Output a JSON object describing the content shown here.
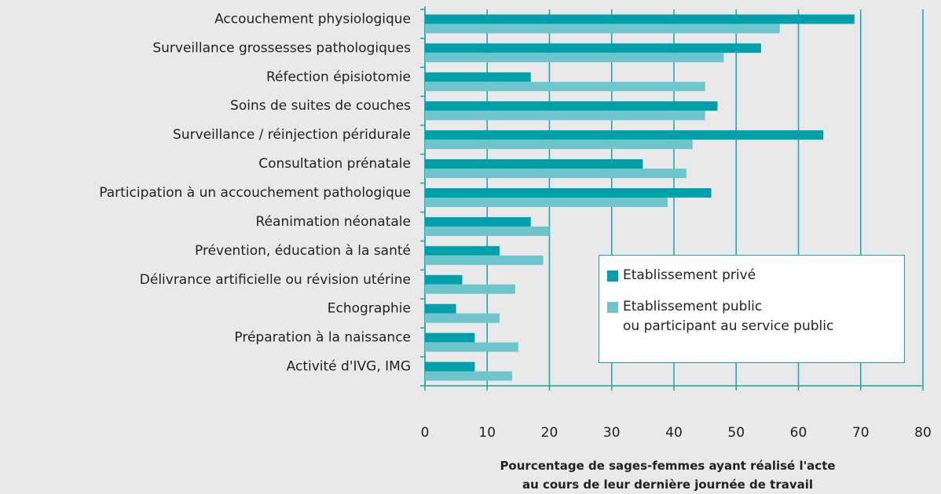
{
  "chart_data": {
    "type": "hbar",
    "categories": [
      "Accouchement physiologique",
      "Surveillance grossesses pathologiques",
      "Réfection épisiotomie",
      "Soins de suites de couches",
      "Surveillance / réinjection péridurale",
      "Consultation prénatale",
      "Participation à un accouchement pathologique",
      "Réanimation néonatale",
      "Prévention, éducation à la santé",
      "Délivrance artificielle ou révision utérine",
      "Echographie",
      "Préparation à la naissance",
      "Activité d'IVG, IMG"
    ],
    "series": [
      {
        "name": "Etablissement privé",
        "color": "#00a0ab",
        "values": [
          69,
          54,
          17,
          47,
          64,
          35,
          46,
          17,
          12,
          6,
          5,
          8,
          8
        ]
      },
      {
        "name": "Etablissement public\nou participant au service public",
        "color": "#6ec5cc",
        "values": [
          57,
          48,
          45,
          45,
          43,
          42,
          39,
          20,
          19,
          14.5,
          12,
          15,
          14
        ]
      }
    ],
    "xlabel": "Pourcentage de sages-femmes ayant réalisé l'acte\nau cours de leur dernière journée de travail",
    "xlim": [
      0,
      80
    ],
    "xticks": [
      0,
      10,
      20,
      30,
      40,
      50,
      60,
      70,
      80
    ],
    "grid": true
  }
}
